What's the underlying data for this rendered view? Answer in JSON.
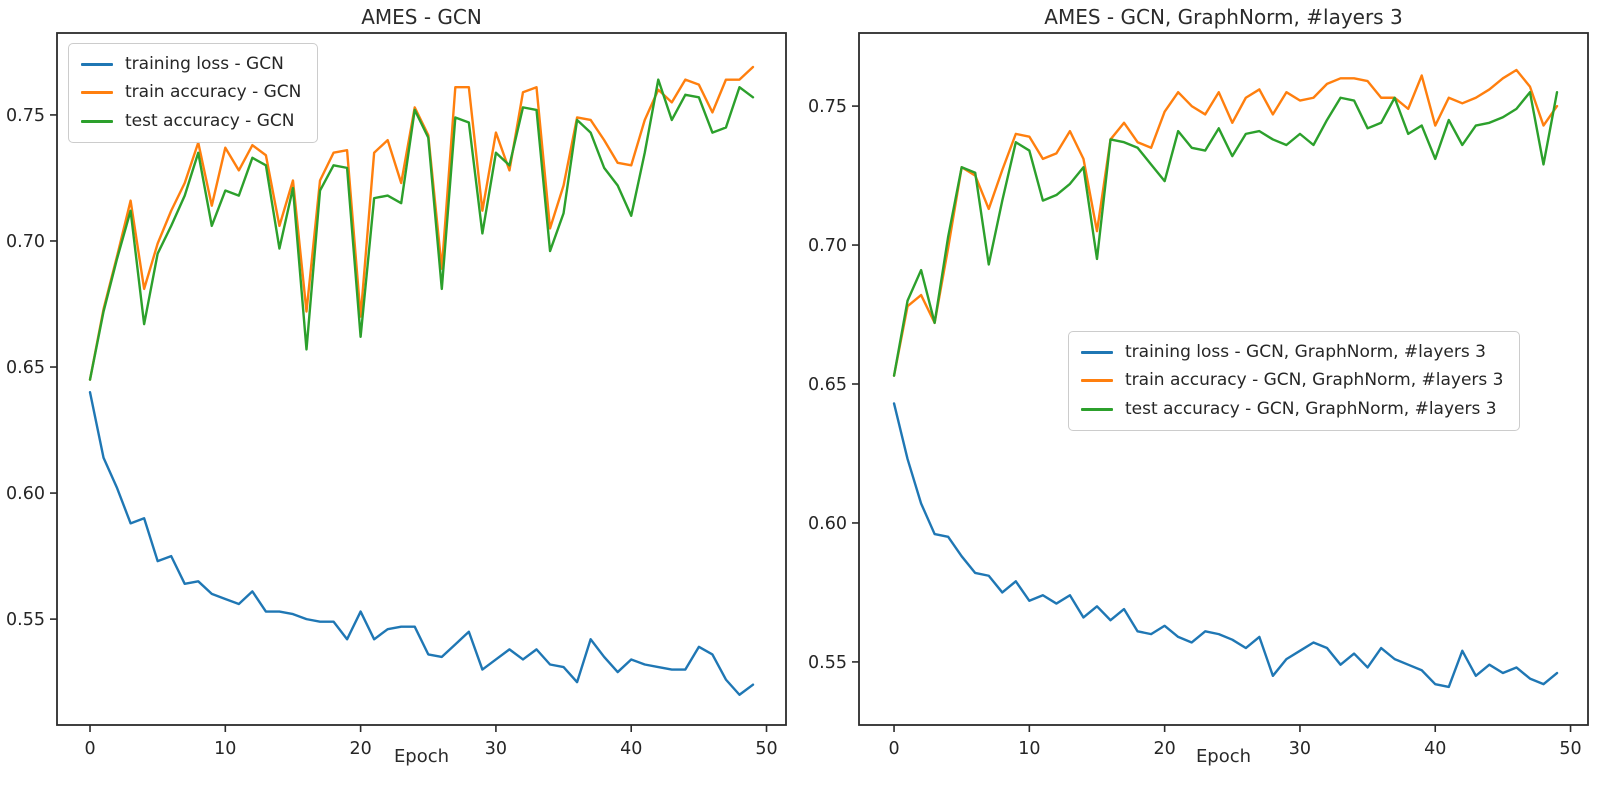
{
  "figure": {
    "background": "#ffffff",
    "text_color": "#262626"
  },
  "chart_data": [
    {
      "type": "line",
      "title": "AMES - GCN",
      "xlabel": "Epoch",
      "x_mode": "index (epoch 0-49)",
      "xticks": [
        0,
        10,
        20,
        30,
        40,
        50
      ],
      "xtick_labels": [
        "0",
        "10",
        "20",
        "30",
        "40",
        "50"
      ],
      "yticks": [
        0.55,
        0.6,
        0.65,
        0.7,
        0.75
      ],
      "ytick_labels": [
        "0.55",
        "0.60",
        "0.65",
        "0.70",
        "0.75"
      ],
      "xlim": [
        -2.44,
        51.44
      ],
      "ylim": [
        0.508,
        0.7825
      ],
      "grid": false,
      "legend_position": "upper left",
      "series": [
        {
          "name": "training loss - GCN",
          "color": "#1f77b4",
          "values": [
            0.64,
            0.614,
            0.602,
            0.588,
            0.59,
            0.573,
            0.575,
            0.564,
            0.565,
            0.56,
            0.558,
            0.556,
            0.561,
            0.553,
            0.553,
            0.552,
            0.55,
            0.549,
            0.549,
            0.542,
            0.553,
            0.542,
            0.546,
            0.547,
            0.547,
            0.536,
            0.535,
            0.54,
            0.545,
            0.53,
            0.534,
            0.538,
            0.534,
            0.538,
            0.532,
            0.531,
            0.525,
            0.542,
            0.535,
            0.529,
            0.534,
            0.532,
            0.531,
            0.53,
            0.53,
            0.539,
            0.536,
            0.526,
            0.52,
            0.524
          ]
        },
        {
          "name": "train accuracy - GCN",
          "color": "#ff7f0e",
          "values": [
            0.645,
            0.673,
            0.694,
            0.716,
            0.681,
            0.699,
            0.712,
            0.723,
            0.739,
            0.714,
            0.737,
            0.728,
            0.738,
            0.734,
            0.706,
            0.724,
            0.672,
            0.724,
            0.735,
            0.736,
            0.67,
            0.735,
            0.74,
            0.723,
            0.753,
            0.742,
            0.689,
            0.761,
            0.761,
            0.712,
            0.743,
            0.728,
            0.759,
            0.761,
            0.705,
            0.722,
            0.749,
            0.748,
            0.74,
            0.731,
            0.73,
            0.748,
            0.76,
            0.755,
            0.764,
            0.762,
            0.751,
            0.764,
            0.764,
            0.769
          ]
        },
        {
          "name": "test accuracy - GCN",
          "color": "#2ca02c",
          "values": [
            0.645,
            0.672,
            0.693,
            0.712,
            0.667,
            0.695,
            0.706,
            0.718,
            0.735,
            0.706,
            0.72,
            0.718,
            0.733,
            0.73,
            0.697,
            0.721,
            0.657,
            0.72,
            0.73,
            0.729,
            0.662,
            0.717,
            0.718,
            0.715,
            0.752,
            0.741,
            0.681,
            0.749,
            0.747,
            0.703,
            0.735,
            0.73,
            0.753,
            0.752,
            0.696,
            0.711,
            0.748,
            0.743,
            0.729,
            0.722,
            0.71,
            0.735,
            0.764,
            0.748,
            0.758,
            0.757,
            0.743,
            0.745,
            0.761,
            0.757
          ]
        }
      ]
    },
    {
      "type": "line",
      "title": "AMES - GCN, GraphNorm, #layers 3",
      "xlabel": "Epoch",
      "x_mode": "index (epoch 0-49)",
      "xticks": [
        0,
        10,
        20,
        30,
        40,
        50
      ],
      "xtick_labels": [
        "0",
        "10",
        "20",
        "30",
        "40",
        "50"
      ],
      "yticks": [
        0.55,
        0.6,
        0.65,
        0.7,
        0.75
      ],
      "ytick_labels": [
        "0.55",
        "0.60",
        "0.65",
        "0.70",
        "0.75"
      ],
      "xlim": [
        -2.59,
        51.29
      ],
      "ylim": [
        0.5273,
        0.7763
      ],
      "grid": false,
      "legend_position": "center right",
      "series": [
        {
          "name": "training loss - GCN, GraphNorm, #layers 3",
          "color": "#1f77b4",
          "values": [
            0.643,
            0.623,
            0.607,
            0.596,
            0.595,
            0.588,
            0.582,
            0.581,
            0.575,
            0.579,
            0.572,
            0.574,
            0.571,
            0.574,
            0.566,
            0.57,
            0.565,
            0.569,
            0.561,
            0.56,
            0.563,
            0.559,
            0.557,
            0.561,
            0.56,
            0.558,
            0.555,
            0.559,
            0.545,
            0.551,
            0.554,
            0.557,
            0.555,
            0.549,
            0.553,
            0.548,
            0.555,
            0.551,
            0.549,
            0.547,
            0.542,
            0.541,
            0.554,
            0.545,
            0.549,
            0.546,
            0.548,
            0.544,
            0.542,
            0.546
          ]
        },
        {
          "name": "train accuracy - GCN, GraphNorm, #layers 3",
          "color": "#ff7f0e",
          "values": [
            0.653,
            0.678,
            0.682,
            0.672,
            0.699,
            0.728,
            0.725,
            0.713,
            0.727,
            0.74,
            0.739,
            0.731,
            0.733,
            0.741,
            0.731,
            0.705,
            0.738,
            0.744,
            0.737,
            0.735,
            0.748,
            0.755,
            0.75,
            0.747,
            0.755,
            0.744,
            0.753,
            0.756,
            0.747,
            0.755,
            0.752,
            0.753,
            0.758,
            0.76,
            0.76,
            0.759,
            0.753,
            0.753,
            0.749,
            0.761,
            0.743,
            0.753,
            0.751,
            0.753,
            0.756,
            0.76,
            0.763,
            0.757,
            0.743,
            0.75
          ]
        },
        {
          "name": "test accuracy - GCN, GraphNorm, #layers 3",
          "color": "#2ca02c",
          "values": [
            0.653,
            0.68,
            0.691,
            0.672,
            0.703,
            0.728,
            0.726,
            0.693,
            0.716,
            0.737,
            0.734,
            0.716,
            0.718,
            0.722,
            0.728,
            0.695,
            0.738,
            0.737,
            0.735,
            0.729,
            0.723,
            0.741,
            0.735,
            0.734,
            0.742,
            0.732,
            0.74,
            0.741,
            0.738,
            0.736,
            0.74,
            0.736,
            0.745,
            0.753,
            0.752,
            0.742,
            0.744,
            0.753,
            0.74,
            0.743,
            0.731,
            0.745,
            0.736,
            0.743,
            0.744,
            0.746,
            0.749,
            0.755,
            0.729,
            0.755
          ]
        }
      ]
    }
  ]
}
